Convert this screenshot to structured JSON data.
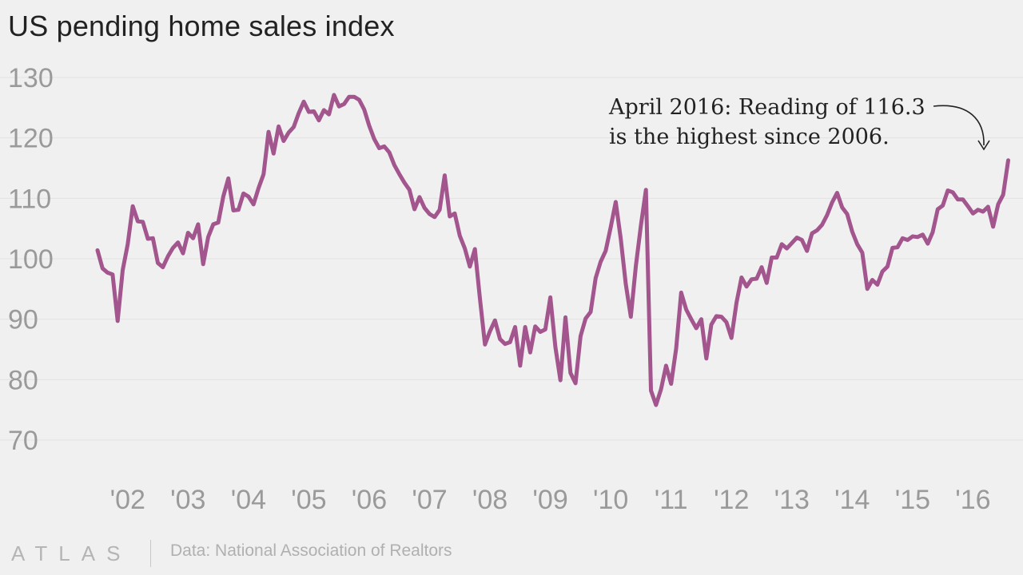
{
  "title": "US pending home sales index",
  "source": "Data: National Association of Realtors",
  "logo": "ATLAS",
  "colors": {
    "line": "#a3558e",
    "background": "#f0f0f0"
  },
  "chart_data": {
    "type": "line",
    "title": "US pending home sales index",
    "xlabel": "",
    "ylabel": "",
    "ylim": [
      70,
      130
    ],
    "y_ticks": [
      70,
      80,
      90,
      100,
      110,
      120,
      130
    ],
    "x_tick_labels": [
      "'02",
      "'03",
      "'04",
      "'05",
      "'06",
      "'07",
      "'08",
      "'09",
      "'10",
      "'11",
      "'12",
      "'13",
      "'14",
      "'15",
      "'16"
    ],
    "x_range": [
      "2001-08",
      "2016-04"
    ],
    "grid": true,
    "annotation": {
      "lines": [
        "April 2016: Reading of 116.3",
        "is the highest since 2006."
      ],
      "date": "2016-04",
      "value": 116.3
    },
    "series": [
      {
        "start": "2001-08",
        "values": [
          101.4,
          98.4,
          97.7,
          97.4,
          89.7,
          98.1,
          102.4,
          108.7,
          106.2,
          106.1,
          103.3,
          103.4,
          99.3,
          98.6,
          100.4,
          101.8,
          102.7,
          100.9,
          104.3,
          103.4,
          105.7,
          99.1,
          103.6,
          105.7,
          106.0,
          110.3,
          113.3,
          108.0,
          108.1,
          110.8,
          110.3,
          109.0,
          111.7,
          114.0,
          121.0,
          117.4,
          121.9,
          119.5,
          120.9,
          121.8,
          124.1,
          126.0,
          124.3,
          124.4,
          122.9,
          124.6,
          123.9,
          127.1,
          125.2,
          125.6,
          126.8,
          126.8,
          126.3,
          124.7,
          122.0,
          119.8,
          118.3,
          118.6,
          117.6,
          115.5,
          114.0,
          112.6,
          111.4,
          108.2,
          110.2,
          108.4,
          107.4,
          106.9,
          108.1,
          113.8,
          107.0,
          107.5,
          103.8,
          101.7,
          98.7,
          101.6,
          93.4,
          85.8,
          88.0,
          89.8,
          86.7,
          85.9,
          86.2,
          88.7,
          82.3,
          88.7,
          84.5,
          88.8,
          87.9,
          88.3,
          93.6,
          85.4,
          79.9,
          90.3,
          81.1,
          79.4,
          87.2,
          90.1,
          91.2,
          96.8,
          99.5,
          101.3,
          105.2,
          109.4,
          103.3,
          95.8,
          90.4,
          98.8,
          105.5,
          111.4,
          78.2,
          75.8,
          78.4,
          82.3,
          79.3,
          85.1,
          94.4,
          91.6,
          90.0,
          88.5,
          90.0,
          83.5,
          89.1,
          90.5,
          90.4,
          89.5,
          86.9,
          92.7,
          96.9,
          95.4,
          96.6,
          96.7,
          98.6,
          96.0,
          100.2,
          100.2,
          102.4,
          101.7,
          102.6,
          103.5,
          103.1,
          101.3,
          104.2,
          104.7,
          105.6,
          107.2,
          109.3,
          110.9,
          108.5,
          107.4,
          104.5,
          102.4,
          101.0,
          95.0,
          96.5,
          95.7,
          97.9,
          98.7,
          101.8,
          101.9,
          103.4,
          103.1,
          103.7,
          103.6,
          104.0,
          102.5,
          104.4,
          108.2,
          108.8,
          111.3,
          111.0,
          109.8,
          109.8,
          108.7,
          107.5,
          108.1,
          107.8,
          108.6,
          105.3,
          109.0,
          110.6,
          116.3
        ]
      }
    ]
  }
}
